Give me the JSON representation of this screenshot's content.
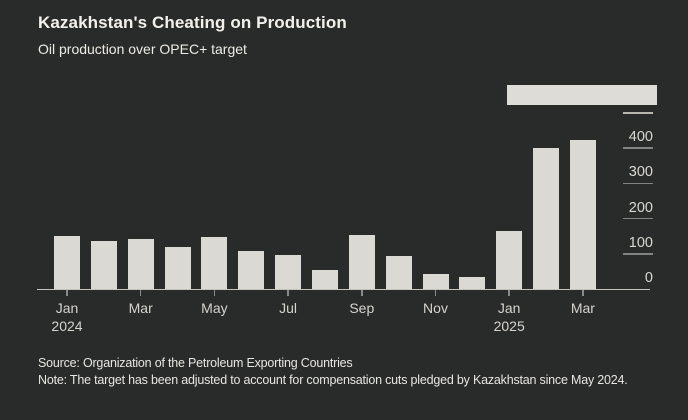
{
  "header": {
    "title": "Kazakhstan's Cheating on Production",
    "subtitle": "Oil production over OPEC+ target"
  },
  "footer": {
    "source": "Source: Organization of the Petroleum Exporting Countries",
    "note": "Note: The target has been adjusted to account for compensation cuts pledged by Kazakhstan since May 2024."
  },
  "chart_data": {
    "type": "bar",
    "title": "Kazakhstan's Cheating on Production",
    "subtitle": "Oil production over OPEC+ target",
    "categories": [
      "Jan 2024",
      "Feb 2024",
      "Mar 2024",
      "Apr 2024",
      "May 2024",
      "Jun 2024",
      "Jul 2024",
      "Aug 2024",
      "Sep 2024",
      "Oct 2024",
      "Nov 2024",
      "Dec 2024",
      "Jan 2025",
      "Feb 2025",
      "Mar 2025"
    ],
    "values": [
      150,
      136,
      143,
      119,
      147,
      109,
      98,
      55,
      152,
      95,
      43,
      33,
      164,
      400,
      422
    ],
    "xlabel": "",
    "ylabel": "",
    "ylim": [
      0,
      500
    ],
    "yticks": [
      0,
      100,
      200,
      300,
      400
    ],
    "x_axis_ticks": [
      {
        "label": "Jan",
        "year": "2024"
      },
      {
        "label": "Mar"
      },
      {
        "label": "May"
      },
      {
        "label": "Jul"
      },
      {
        "label": "Sep"
      },
      {
        "label": "Nov"
      },
      {
        "label": "Jan",
        "year": "2025"
      },
      {
        "label": "Mar"
      }
    ],
    "grid": "none",
    "legend": "none",
    "bar_color": "#dbd9d4",
    "background": "#292b2a",
    "axis_color": "#c6c4bf"
  }
}
